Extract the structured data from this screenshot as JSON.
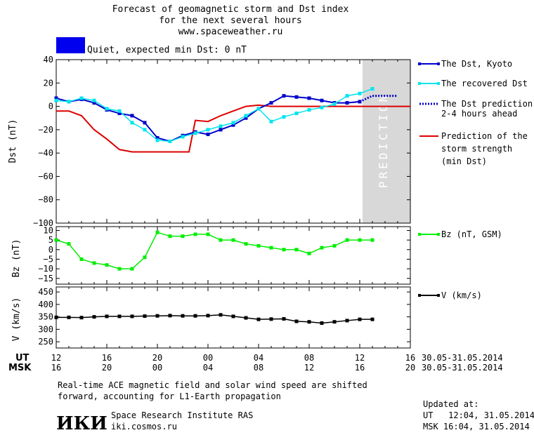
{
  "header": {
    "title_line1": "Forecast of geomagnetic storm and Dst index",
    "title_line2": "for the next several hours",
    "website": "www.spaceweather.ru",
    "status_text": "Quiet, expected min Dst: 0 nT",
    "status_color": "#0000ee"
  },
  "colors": {
    "dst_kyoto": "#0000cc",
    "dst_recovered": "#00e5ee",
    "prediction": "#0000cc",
    "storm_strength": "#dd0000",
    "bz": "#00ee00",
    "v": "#000000",
    "prediction_band": "#d8d8d8"
  },
  "prediction_label": "PREDICTION",
  "time_axis": {
    "ut_label": "UT",
    "msk_label": "MSK",
    "ut_ticks": [
      "12",
      "16",
      "20",
      "00",
      "04",
      "08",
      "12",
      "16"
    ],
    "msk_ticks": [
      "16",
      "20",
      "00",
      "04",
      "08",
      "12",
      "16",
      "20"
    ],
    "date_range": "30.05-31.05.2014"
  },
  "chart_data": [
    {
      "type": "line",
      "ylabel": "Dst (nT)",
      "ylim": [
        -100,
        40
      ],
      "yticks": [
        "40",
        "20",
        "0",
        "−20",
        "−40",
        "−60",
        "−80",
        "−100"
      ],
      "xlim": [
        0,
        28
      ],
      "prediction_start": 24,
      "grid": false,
      "legend": [
        {
          "key": "dst_kyoto",
          "label": "The Dst, Kyoto"
        },
        {
          "key": "dst_recovered",
          "label": "The recovered Dst"
        },
        {
          "key": "prediction",
          "label_line1": "The Dst prediction",
          "label_line2": "2-4 hours ahead"
        },
        {
          "key": "storm",
          "label_line1": "Prediction of the",
          "label_line2": "storm strength",
          "label_line3": "(min Dst)"
        }
      ],
      "series": [
        {
          "name": "The Dst, Kyoto",
          "x": [
            0,
            1,
            2,
            3,
            4,
            5,
            6,
            7,
            8,
            9,
            10,
            11,
            12,
            13,
            14,
            15,
            16,
            17,
            18,
            19,
            20,
            21,
            22,
            23,
            24
          ],
          "y": [
            7,
            4,
            6,
            3,
            -3,
            -6,
            -8,
            -14,
            -27,
            -30,
            -25,
            -22,
            -24,
            -20,
            -16,
            -10,
            -2,
            3,
            9,
            8,
            7,
            5,
            3,
            3,
            4
          ]
        },
        {
          "name": "The recovered Dst",
          "x": [
            0,
            1,
            2,
            3,
            4,
            5,
            6,
            7,
            8,
            9,
            10,
            11,
            12,
            13,
            14,
            15,
            16,
            17,
            18,
            19,
            20,
            21,
            22,
            23,
            24,
            25
          ],
          "y": [
            5,
            4,
            7,
            5,
            -2,
            -4,
            -14,
            -20,
            -29,
            -30,
            -26,
            -23,
            -20,
            -17,
            -14,
            -8,
            -2,
            -13,
            -9,
            -6,
            -3,
            -1,
            2,
            9,
            11,
            15
          ]
        },
        {
          "name": "The Dst prediction 2-4 hours ahead",
          "x": [
            24,
            25,
            26,
            27
          ],
          "y": [
            4,
            9,
            9,
            9
          ]
        },
        {
          "name": "Prediction of the storm strength (min Dst)",
          "x": [
            0,
            1,
            2,
            3,
            4,
            5,
            6,
            7,
            8,
            9,
            10,
            10.5,
            11,
            12,
            13,
            14,
            15,
            16,
            17,
            18,
            19,
            20,
            21,
            22,
            23,
            24,
            25,
            26,
            27,
            28
          ],
          "y": [
            -4,
            -4,
            -8,
            -20,
            -28,
            -37,
            -39,
            -39,
            -39,
            -39,
            -39,
            -39,
            -12,
            -13,
            -8,
            -4,
            0,
            1,
            0,
            0,
            0,
            0,
            0,
            0,
            0,
            0,
            0,
            0,
            0,
            0
          ]
        }
      ]
    },
    {
      "type": "line",
      "ylabel": "Bz (nT)",
      "ylim": [
        -18,
        12
      ],
      "yticks": [
        "10",
        "5",
        "0",
        "−5",
        "−10",
        "−15"
      ],
      "ytick_values": [
        10,
        5,
        0,
        -5,
        -10,
        -15
      ],
      "xlim": [
        0,
        28
      ],
      "legend": [
        {
          "key": "bz",
          "label": "Bz (nT, GSM)"
        }
      ],
      "series": [
        {
          "name": "Bz (nT, GSM)",
          "x": [
            0,
            1,
            2,
            3,
            4,
            5,
            6,
            7,
            8,
            9,
            10,
            11,
            12,
            13,
            14,
            15,
            16,
            17,
            18,
            19,
            20,
            21,
            22,
            23,
            24,
            25
          ],
          "y": [
            5,
            3,
            -5,
            -7,
            -8,
            -10,
            -10,
            -4,
            9,
            7,
            7,
            8,
            8,
            5,
            5,
            3,
            2,
            1,
            0,
            0,
            -2,
            1,
            2,
            5,
            5,
            5
          ]
        }
      ]
    },
    {
      "type": "line",
      "ylabel": "V (km/s)",
      "ylim": [
        225,
        470
      ],
      "yticks": [
        "450",
        "400",
        "350",
        "300",
        "250"
      ],
      "ytick_values": [
        450,
        400,
        350,
        300,
        250
      ],
      "xlim": [
        0,
        28
      ],
      "legend": [
        {
          "key": "v",
          "label": "V (km/s)"
        }
      ],
      "series": [
        {
          "name": "V (km/s)",
          "x": [
            0,
            1,
            2,
            3,
            4,
            5,
            6,
            7,
            8,
            9,
            10,
            11,
            12,
            13,
            14,
            15,
            16,
            17,
            18,
            19,
            20,
            21,
            22,
            23,
            24,
            25
          ],
          "y": [
            348,
            348,
            347,
            350,
            352,
            352,
            352,
            353,
            354,
            355,
            354,
            354,
            355,
            358,
            352,
            346,
            340,
            341,
            342,
            332,
            330,
            325,
            330,
            335,
            340,
            340
          ]
        }
      ]
    }
  ],
  "footer": {
    "note_line1": "Real-time ACE magnetic field and solar wind speed are shifted",
    "note_line2": "forward, accounting for L1-Earth propagation",
    "logo_text": "ИКИ",
    "institute": "Space Research Institute RAS",
    "institute_url": "iki.cosmos.ru",
    "updated_label": "Updated at:",
    "updated_ut": "UT   12:04, 31.05.2014",
    "updated_msk": "MSK 16:04, 31.05.2014"
  }
}
